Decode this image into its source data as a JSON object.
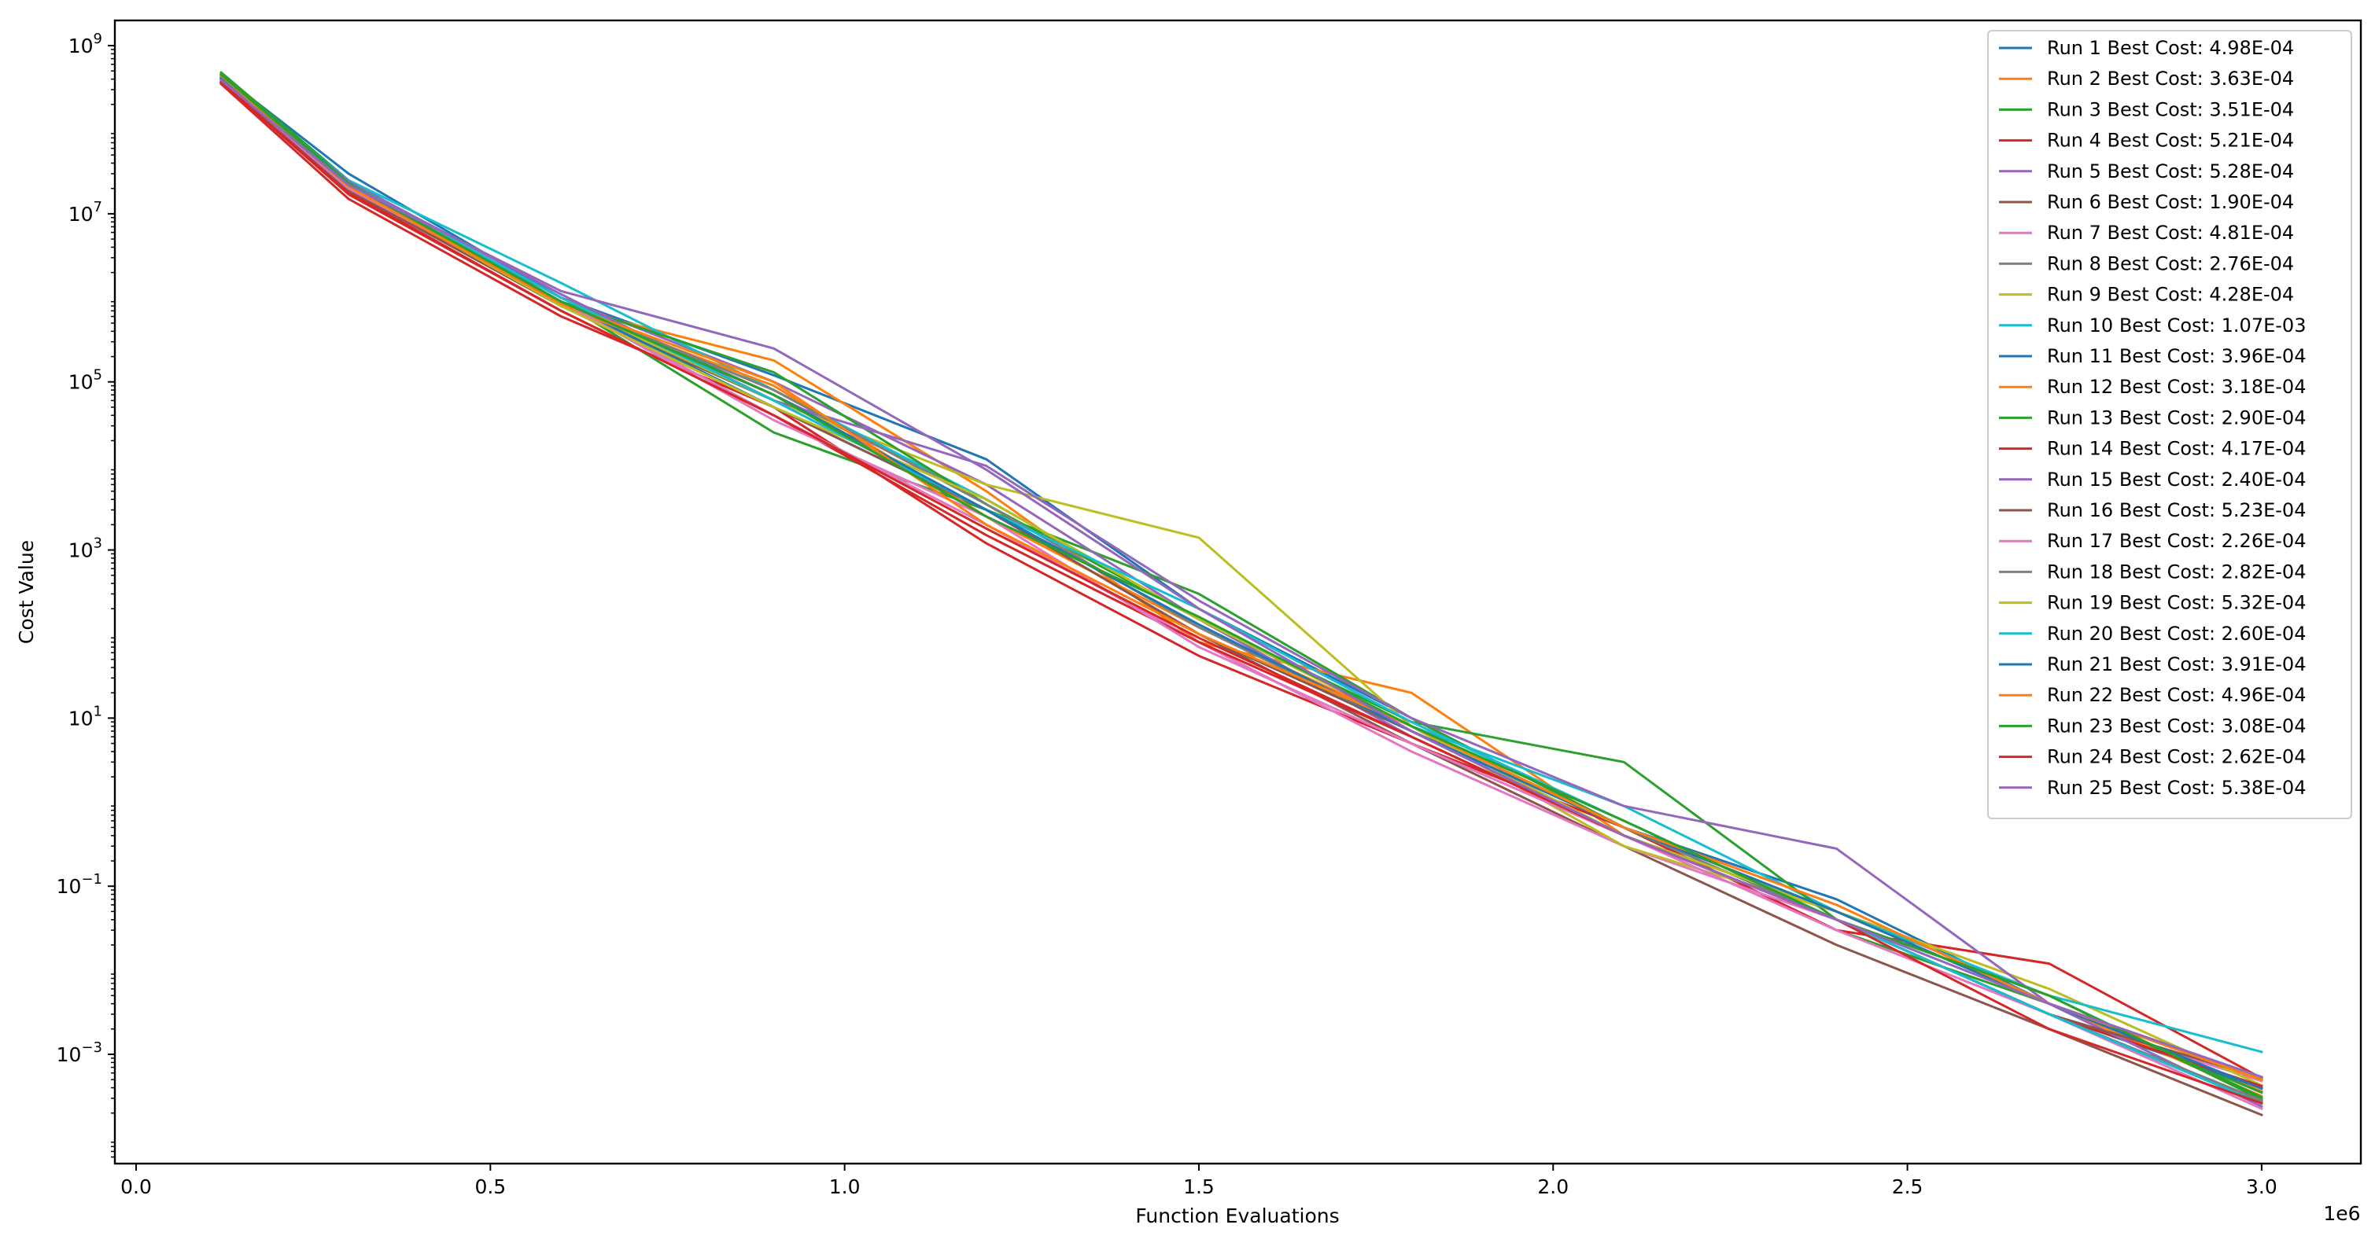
{
  "chart_data": {
    "type": "line",
    "title": "",
    "xlabel": "Function Evaluations",
    "ylabel": "Cost Value",
    "x_offset_label": "1e6",
    "y_scale": "log",
    "xlim": [
      -30000,
      3140000
    ],
    "ylim_log10": [
      -4.3,
      9.3
    ],
    "x_ticks": [
      {
        "value": 0,
        "label": "0.0"
      },
      {
        "value": 500000,
        "label": "0.5"
      },
      {
        "value": 1000000,
        "label": "1.0"
      },
      {
        "value": 1500000,
        "label": "1.5"
      },
      {
        "value": 2000000,
        "label": "2.0"
      },
      {
        "value": 2500000,
        "label": "2.5"
      },
      {
        "value": 3000000,
        "label": "3.0"
      }
    ],
    "y_ticks": [
      {
        "exp": 9,
        "base": "10",
        "sup": "9"
      },
      {
        "exp": 7,
        "base": "10",
        "sup": "7"
      },
      {
        "exp": 5,
        "base": "10",
        "sup": "5"
      },
      {
        "exp": 3,
        "base": "10",
        "sup": "3"
      },
      {
        "exp": 1,
        "base": "10",
        "sup": "1"
      },
      {
        "exp": -1,
        "base": "10",
        "sup": "−1"
      },
      {
        "exp": -3,
        "base": "10",
        "sup": "−3"
      }
    ],
    "grid": false,
    "legend_position": "top-right",
    "x": [
      120000,
      300000,
      600000,
      900000,
      1200000,
      1500000,
      1800000,
      2100000,
      2400000,
      2700000,
      3000000
    ],
    "series": [
      {
        "name": "Run 1 Best Cost: 4.98E-04",
        "color": "#1f77b4",
        "values": [
          450000000.0,
          30000000.0,
          1000000.0,
          120000.0,
          12000.0,
          200,
          10,
          0.5,
          0.07,
          0.004,
          0.000498
        ]
      },
      {
        "name": "Run 2 Best Cost: 3.63E-04",
        "color": "#ff7f0e",
        "values": [
          420000000.0,
          20000000.0,
          800000.0,
          180000.0,
          5000.0,
          80,
          20,
          0.4,
          0.05,
          0.004,
          0.000363
        ]
      },
      {
        "name": "Run 3 Best Cost: 3.51E-04",
        "color": "#2ca02c",
        "values": [
          480000000.0,
          25000000.0,
          900000.0,
          25000.0,
          3000.0,
          300,
          10,
          0.5,
          0.03,
          0.004,
          0.000351
        ]
      },
      {
        "name": "Run 4 Best Cost: 5.21E-04",
        "color": "#d62728",
        "values": [
          350000000.0,
          15000000.0,
          600000.0,
          50000.0,
          1200.0,
          55,
          5,
          0.5,
          0.03,
          0.012,
          0.000521
        ]
      },
      {
        "name": "Run 5 Best Cost: 5.28E-04",
        "color": "#9467bd",
        "values": [
          370000000.0,
          22000000.0,
          1000000.0,
          100000.0,
          6000.0,
          150,
          6,
          0.4,
          0.05,
          0.004,
          0.000528
        ]
      },
      {
        "name": "Run 6 Best Cost: 1.90E-04",
        "color": "#8c564b",
        "values": [
          400000000.0,
          20000000.0,
          800000.0,
          60000.0,
          3000.0,
          100,
          5,
          0.3,
          0.02,
          0.002,
          0.00019
        ]
      },
      {
        "name": "Run 7 Best Cost: 4.81E-04",
        "color": "#e377c2",
        "values": [
          390000000.0,
          20000000.0,
          900000.0,
          40000.0,
          2000.0,
          80,
          4,
          0.3,
          0.04,
          0.003,
          0.000481
        ]
      },
      {
        "name": "Run 8 Best Cost: 2.76E-04",
        "color": "#7f7f7f",
        "values": [
          410000000.0,
          23000000.0,
          1000000.0,
          70000.0,
          4000.0,
          150,
          8,
          0.5,
          0.04,
          0.003,
          0.000276
        ]
      },
      {
        "name": "Run 9 Best Cost: 4.28E-04",
        "color": "#bcbd22",
        "values": [
          430000000.0,
          21000000.0,
          900000.0,
          60000.0,
          6000.0,
          1400,
          8,
          0.3,
          0.05,
          0.006,
          0.000428
        ]
      },
      {
        "name": "Run 10 Best Cost: 1.07E-03",
        "color": "#17becf",
        "values": [
          400000000.0,
          25000000.0,
          1500000.0,
          80000.0,
          4000.0,
          150,
          8,
          0.9,
          0.05,
          0.005,
          0.00107
        ]
      },
      {
        "name": "Run 11 Best Cost: 3.96E-04",
        "color": "#1f77b4",
        "values": [
          420000000.0,
          24000000.0,
          900000.0,
          50000.0,
          3000.0,
          100,
          7,
          0.4,
          0.04,
          0.003,
          0.000396
        ]
      },
      {
        "name": "Run 12 Best Cost: 3.18E-04",
        "color": "#ff7f0e",
        "values": [
          440000000.0,
          22000000.0,
          800000.0,
          90000.0,
          2500.0,
          120,
          8,
          0.5,
          0.05,
          0.004,
          0.000318
        ]
      },
      {
        "name": "Run 13 Best Cost: 2.90E-04",
        "color": "#2ca02c",
        "values": [
          460000000.0,
          23000000.0,
          900000.0,
          130000.0,
          3500.0,
          150,
          9,
          3.0,
          0.04,
          0.005,
          0.00029
        ]
      },
      {
        "name": "Run 14 Best Cost: 4.17E-04",
        "color": "#d62728",
        "values": [
          360000000.0,
          18000000.0,
          700000.0,
          40000.0,
          1500.0,
          80,
          6,
          0.4,
          0.04,
          0.003,
          0.000417
        ]
      },
      {
        "name": "Run 15 Best Cost: 2.40E-04",
        "color": "#9467bd",
        "values": [
          380000000.0,
          24000000.0,
          1100000.0,
          60000.0,
          10000.0,
          250,
          10,
          0.9,
          0.28,
          0.004,
          0.00024
        ]
      },
      {
        "name": "Run 16 Best Cost: 5.23E-04",
        "color": "#8c564b",
        "values": [
          400000000.0,
          19000000.0,
          800000.0,
          50000.0,
          3000.0,
          100,
          7,
          0.4,
          0.04,
          0.003,
          0.000523
        ]
      },
      {
        "name": "Run 17 Best Cost: 2.26E-04",
        "color": "#e377c2",
        "values": [
          410000000.0,
          20000000.0,
          900000.0,
          35000.0,
          2500.0,
          70,
          5,
          0.4,
          0.03,
          0.003,
          0.000226
        ]
      },
      {
        "name": "Run 18 Best Cost: 2.82E-04",
        "color": "#7f7f7f",
        "values": [
          420000000.0,
          21000000.0,
          900000.0,
          80000.0,
          3500.0,
          120,
          7,
          0.5,
          0.04,
          0.003,
          0.000282
        ]
      },
      {
        "name": "Run 19 Best Cost: 5.32E-04",
        "color": "#bcbd22",
        "values": [
          430000000.0,
          22000000.0,
          800000.0,
          50000.0,
          4000.0,
          150,
          8,
          0.4,
          0.05,
          0.004,
          0.000532
        ]
      },
      {
        "name": "Run 20 Best Cost: 2.60E-04",
        "color": "#17becf",
        "values": [
          400000000.0,
          23000000.0,
          1000000.0,
          60000.0,
          3000.0,
          200,
          9,
          0.6,
          0.04,
          0.003,
          0.00026
        ]
      },
      {
        "name": "Run 21 Best Cost: 3.91E-04",
        "color": "#1f77b4",
        "values": [
          410000000.0,
          22000000.0,
          900000.0,
          70000.0,
          3000.0,
          130,
          7,
          0.5,
          0.05,
          0.004,
          0.000391
        ]
      },
      {
        "name": "Run 22 Best Cost: 4.96E-04",
        "color": "#ff7f0e",
        "values": [
          440000000.0,
          21000000.0,
          850000.0,
          100000.0,
          2000.0,
          100,
          8,
          0.5,
          0.06,
          0.004,
          0.000496
        ]
      },
      {
        "name": "Run 23 Best Cost: 3.08E-04",
        "color": "#2ca02c",
        "values": [
          450000000.0,
          23000000.0,
          900000.0,
          70000.0,
          2500.0,
          160,
          8,
          0.6,
          0.04,
          0.005,
          0.000308
        ]
      },
      {
        "name": "Run 24 Best Cost: 2.62E-04",
        "color": "#d62728",
        "values": [
          370000000.0,
          17000000.0,
          700000.0,
          40000.0,
          1800.0,
          90,
          6,
          0.4,
          0.04,
          0.002,
          0.000262
        ]
      },
      {
        "name": "Run 25 Best Cost: 5.38E-04",
        "color": "#9467bd",
        "values": [
          390000000.0,
          22000000.0,
          1200000.0,
          250000.0,
          9000.0,
          200,
          7,
          0.4,
          0.04,
          0.004,
          0.000538
        ]
      }
    ]
  }
}
